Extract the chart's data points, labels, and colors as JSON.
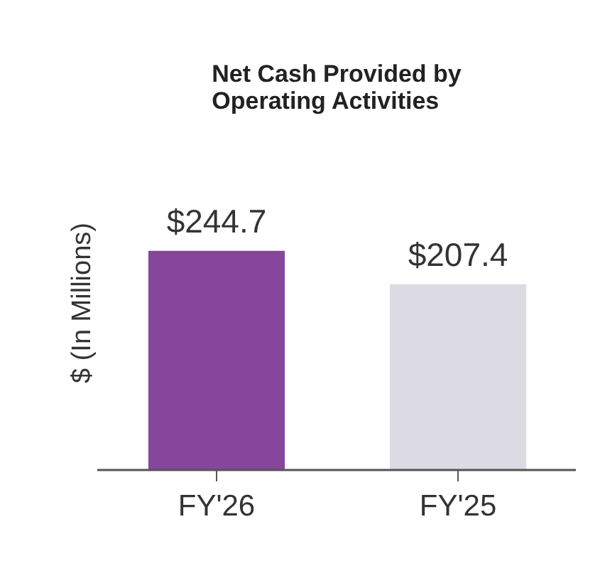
{
  "chart_data": {
    "type": "bar",
    "title": "Net Cash Provided by Operating Activities",
    "ylabel": "$ (In Millions)",
    "categories": [
      "FY'26",
      "FY'25"
    ],
    "values": [
      244.7,
      207.4
    ],
    "colors": [
      "#86469b",
      "#dcdbe3"
    ],
    "value_labels": [
      "$244.7",
      "$207.4"
    ],
    "grid": false
  }
}
